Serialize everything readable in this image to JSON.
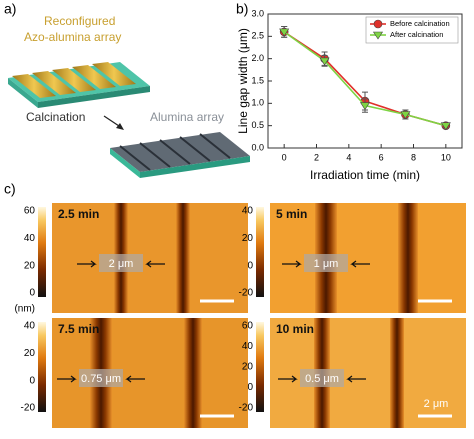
{
  "panel_labels": [
    "a)",
    "b)",
    "c)"
  ],
  "schematic": {
    "top_label_1": "Reconfigured",
    "top_label_2": "Azo-alumina array",
    "step": "Calcination",
    "bottom_label": "Alumina array"
  },
  "chart_data": {
    "type": "line",
    "x_label": "Irradiation time (min)",
    "y_label": "Line gap width (μm)",
    "xlim": [
      -1,
      11
    ],
    "xticks": [
      0,
      2,
      4,
      6,
      8,
      10
    ],
    "ylim": [
      0,
      3.0
    ],
    "yticks": [
      {
        "value": 0,
        "label": "0.0"
      },
      {
        "value": 0.5,
        "label": "0.5"
      },
      {
        "value": 1,
        "label": "1.0"
      },
      {
        "value": 1.5,
        "label": "1.5"
      },
      {
        "value": 2,
        "label": "2.0"
      },
      {
        "value": 2.5,
        "label": "2.5"
      },
      {
        "value": 3,
        "label": "3.0"
      }
    ],
    "legend": "upper right",
    "x": [
      0,
      2.5,
      5,
      7.5,
      10
    ],
    "series": [
      {
        "name": "Before calcination",
        "color": "#e0302a",
        "marker": "circle",
        "values": [
          2.6,
          2.0,
          1.05,
          0.75,
          0.5
        ],
        "errors": [
          0.12,
          0.15,
          0.2,
          0.1,
          0.05
        ]
      },
      {
        "name": "After calcination",
        "color": "#7ed444",
        "marker": "triangle-down",
        "values": [
          2.6,
          1.95,
          0.95,
          0.75,
          0.5
        ],
        "errors": [
          0.12,
          0.12,
          0.15,
          0.1,
          0.05
        ]
      }
    ]
  },
  "afm": [
    {
      "time": "2.5 min",
      "gap": "2 μm",
      "ticks": [
        "60",
        "40",
        "20",
        "0"
      ],
      "unit": "(nm)"
    },
    {
      "time": "5 min",
      "gap": "1 μm",
      "ticks": [
        "40",
        "20",
        "0",
        "-20"
      ]
    },
    {
      "time": "7.5 min",
      "gap": "0.75 μm",
      "ticks": [
        "40",
        "20",
        "0",
        "-20"
      ]
    },
    {
      "time": "10 min",
      "gap": "0.5 μm",
      "ticks": [
        "60",
        "40",
        "20",
        "0",
        "-20"
      ],
      "scale": "2 μm"
    }
  ]
}
